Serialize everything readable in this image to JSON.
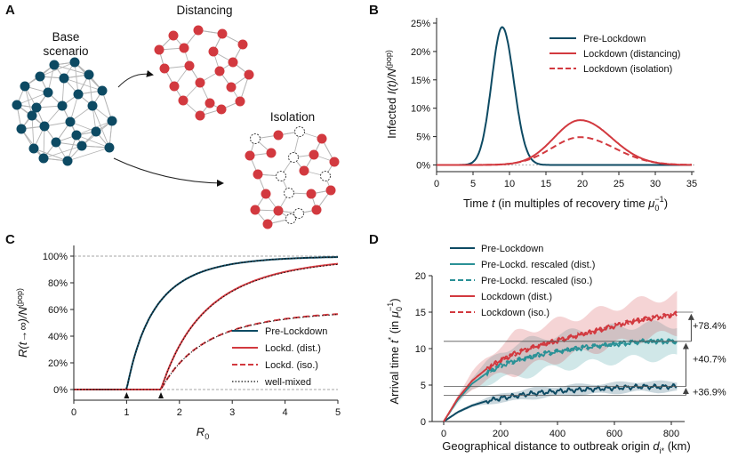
{
  "panels": {
    "a": "A",
    "b": "B",
    "c": "C",
    "d": "D"
  },
  "colors": {
    "pre": "#0d4a63",
    "pre_scaled": "#2a9196",
    "lock": "#d2393f",
    "wellmixed": "#111111",
    "grid": "#999999"
  },
  "network": {
    "base_label_1": "Base",
    "base_label_2": "scenario",
    "distancing_label": "Distancing",
    "isolation_label": "Isolation"
  },
  "panel_b": {
    "ylabel_main": "Infected ",
    "ylabel_it": "I(t)/N",
    "ylabel_sup": "(pop)",
    "xlabel_main": "Time ",
    "xlabel_it": "t",
    "xlabel_rest": "   (in multiples of recovery time ",
    "xlabel_mu": "μ",
    "xlabel_sub": "0",
    "xlabel_sup": "−1",
    "xlabel_end": ")",
    "xticks": [
      "0",
      "5",
      "10",
      "15",
      "20",
      "25",
      "30",
      "35"
    ],
    "yticks": [
      "0%",
      "5%",
      "10%",
      "15%",
      "20%",
      "25%"
    ],
    "legend": [
      "Pre-Lockdown",
      "Lockdown (distancing)",
      "Lockdown (isolation)"
    ]
  },
  "panel_c": {
    "ylabel": "R(t→∞)/N",
    "ylabel_sup": "(pop)",
    "xlabel": "R",
    "xlabel_sub": "0",
    "xticks": [
      "0",
      "1",
      "2",
      "3",
      "4",
      "5"
    ],
    "yticks": [
      "0%",
      "20%",
      "40%",
      "60%",
      "80%",
      "100%"
    ],
    "legend": [
      "Pre-Lockdown",
      "Lockd. (dist.)",
      "Lockd. (iso.)",
      "well-mixed"
    ]
  },
  "panel_d": {
    "ylabel_main": "Arrival time ",
    "ylabel_t": "t",
    "ylabel_star": "*",
    "ylabel_mid": "  (in ",
    "ylabel_mu": "μ",
    "ylabel_sub": "0",
    "ylabel_sup": "−1",
    "ylabel_end": ")",
    "xlabel_main": "Geographical distance to outbreak origin ",
    "xlabel_d": "d",
    "xlabel_sub": "i*",
    "xlabel_end": "  (km)",
    "xticks": [
      "0",
      "200",
      "400",
      "600",
      "800"
    ],
    "yticks": [
      "0",
      "5",
      "10",
      "15",
      "20"
    ],
    "legend": [
      "Pre-Lockdown",
      "Pre-Lockd. rescaled (dist.)",
      "Pre-Lockd. rescaled (iso.)",
      "Lockdown (dist.)",
      "Lockdown (iso.)"
    ],
    "annotations": [
      "+78.4%",
      "+40.7%",
      "+36.9%"
    ]
  },
  "chart_data": [
    {
      "id": "B",
      "type": "line",
      "title": "",
      "xlabel": "Time t (in multiples of recovery time μ0^-1)",
      "ylabel": "Infected I(t)/N(pop)",
      "xlim": [
        0,
        35
      ],
      "ylim": [
        -0.01,
        0.26
      ],
      "series": [
        {
          "name": "Pre-Lockdown",
          "style": "solid",
          "peak_t": 9.0,
          "peak": 0.243,
          "width_left": 1.45,
          "width_right": 1.6
        },
        {
          "name": "Lockdown (distancing)",
          "style": "solid",
          "peak_t": 19.7,
          "peak": 0.079,
          "width_left": 3.6,
          "width_right": 4.3
        },
        {
          "name": "Lockdown (isolation)",
          "style": "dashed",
          "peak_t": 19.7,
          "peak": 0.049,
          "width_left": 3.9,
          "width_right": 4.7
        }
      ]
    },
    {
      "id": "C",
      "type": "line",
      "title": "",
      "xlabel": "R0",
      "ylabel": "R(t→∞)/N(pop)",
      "xlim": [
        0,
        5
      ],
      "ylim": [
        -0.05,
        1.05
      ],
      "thresholds": [
        1.0,
        1.65
      ],
      "series": [
        {
          "name": "Pre-Lockdown",
          "style": "solid",
          "threshold": 1.0,
          "scale": 1.0
        },
        {
          "name": "Lockd. (dist.)",
          "style": "solid",
          "threshold": 1.65,
          "scale": 1.0
        },
        {
          "name": "Lockd. (iso.)",
          "style": "dashed",
          "threshold": 1.65,
          "scale": 0.6
        },
        {
          "name": "well-mixed",
          "style": "dotted",
          "threshold": 1.0,
          "scale": 1.0
        }
      ]
    },
    {
      "id": "D",
      "type": "line",
      "title": "",
      "xlabel": "Geographical distance to outbreak origin d_i* (km)",
      "ylabel": "Arrival time t* (in μ0^-1)",
      "xlim": [
        -30,
        860
      ],
      "ylim": [
        0,
        20
      ],
      "x": [
        0,
        50,
        100,
        150,
        200,
        250,
        300,
        350,
        400,
        450,
        500,
        550,
        600,
        650,
        700,
        750,
        800,
        820
      ],
      "series": [
        {
          "name": "Pre-Lockdown",
          "values": [
            0,
            1.3,
            2.2,
            2.8,
            3.2,
            3.5,
            3.8,
            4.0,
            4.15,
            4.3,
            4.4,
            4.5,
            4.6,
            4.7,
            4.8,
            4.75,
            4.8,
            4.8
          ],
          "band": 0.7
        },
        {
          "name": "Pre-Lockd. rescaled (dist.)",
          "values": [
            0,
            3.0,
            5.2,
            6.6,
            7.7,
            8.3,
            8.8,
            9.3,
            9.6,
            9.9,
            10.2,
            10.4,
            10.6,
            10.8,
            11.0,
            11.0,
            11.0,
            11.0
          ],
          "band": 2.3
        },
        {
          "name": "Pre-Lockd. rescaled (iso.)",
          "values": [
            0,
            3.0,
            5.2,
            6.6,
            7.7,
            8.3,
            8.8,
            9.3,
            9.6,
            9.9,
            10.2,
            10.4,
            10.6,
            10.8,
            11.0,
            11.0,
            11.0,
            11.0
          ],
          "band": 2.3
        },
        {
          "name": "Lockdown (dist.)",
          "values": [
            0,
            3.2,
            5.6,
            7.2,
            8.4,
            9.3,
            10.0,
            10.6,
            11.1,
            11.6,
            12.1,
            12.6,
            13.1,
            13.6,
            14.0,
            14.3,
            14.6,
            14.8
          ],
          "band": 2.6
        },
        {
          "name": "Lockdown (iso.)",
          "values": [
            0,
            3.2,
            5.6,
            7.2,
            8.4,
            9.3,
            10.0,
            10.6,
            11.1,
            11.6,
            12.1,
            12.6,
            13.1,
            13.6,
            14.0,
            14.3,
            14.6,
            14.8
          ],
          "band": 2.6
        }
      ],
      "annotations": [
        {
          "text": "+78.4%",
          "from": 11.0,
          "to": 15.0
        },
        {
          "text": "+40.7%",
          "from": 4.8,
          "to": 11.0
        },
        {
          "text": "+36.9%",
          "from": 3.6,
          "to": 4.8
        }
      ]
    }
  ]
}
